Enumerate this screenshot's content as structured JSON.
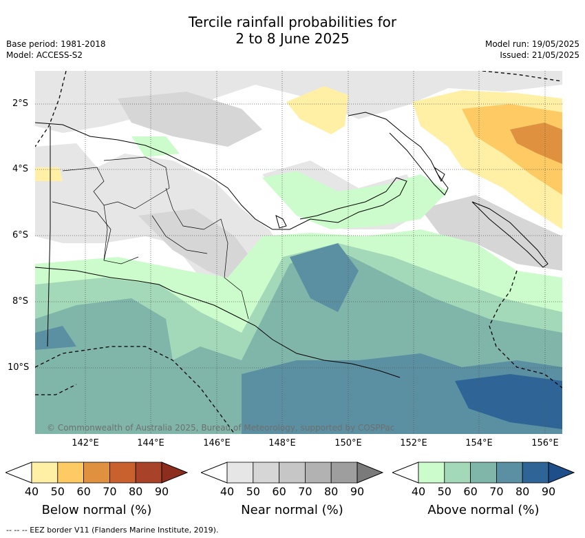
{
  "title_line1": "Tercile rainfall probabilities for",
  "title_line2": "2 to 8 June 2025",
  "base_period": "Base period: 1981-2018",
  "model": "Model: ACCESS-S2",
  "model_run": "Model run: 19/05/2025",
  "issued": "Issued: 21/05/2025",
  "credit": "© Commonwealth of Australia 2025, Bureau of Meteorology, supported by COSPPac",
  "lat_labels": [
    "2°S",
    "4°S",
    "6°S",
    "8°S",
    "10°S"
  ],
  "lon_labels": [
    "142°E",
    "144°E",
    "146°E",
    "148°E",
    "150°E",
    "152°E",
    "154°E",
    "156°E"
  ],
  "legends": [
    {
      "title": "Below normal (%)",
      "ticks": [
        "40",
        "50",
        "60",
        "70",
        "80",
        "90"
      ],
      "colors": [
        "#fff0a6",
        "#fdca64",
        "#e0913f",
        "#c8612e",
        "#a8432a",
        "#8c2d1e"
      ]
    },
    {
      "title": "Near normal (%)",
      "ticks": [
        "40",
        "50",
        "60",
        "70",
        "80",
        "90"
      ],
      "colors": [
        "#e6e6e6",
        "#d6d6d6",
        "#c6c6c6",
        "#b2b2b2",
        "#9e9e9e",
        "#7a7a7a"
      ]
    },
    {
      "title": "Above normal (%)",
      "ticks": [
        "40",
        "50",
        "60",
        "70",
        "80",
        "90"
      ],
      "colors": [
        "#ccfccc",
        "#a3d8b8",
        "#80b6aa",
        "#5a90a2",
        "#2e6496",
        "#1f4f8a"
      ]
    }
  ],
  "footer": "-- -- -- EEZ border V11 (Flanders Marine Institute, 2019)."
}
